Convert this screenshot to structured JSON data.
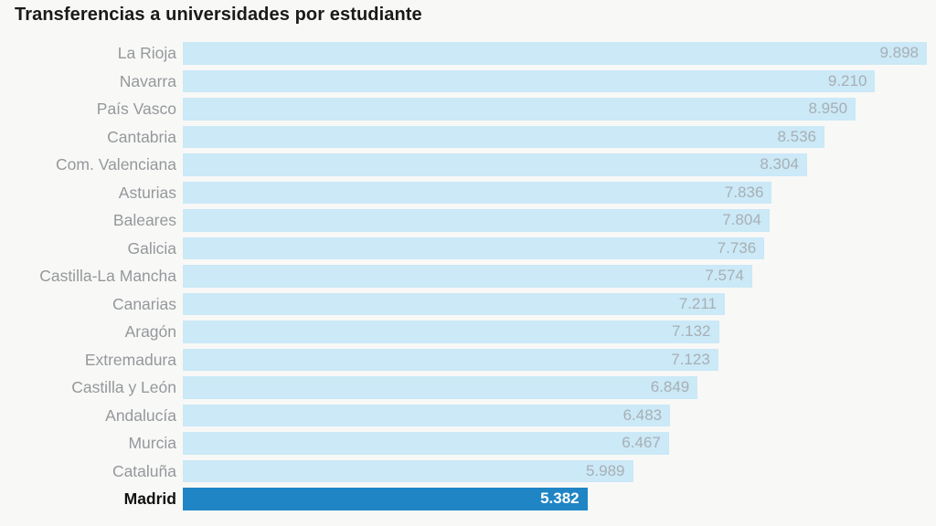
{
  "header": {
    "title": "Transferencias a universidades por estudiante"
  },
  "chart_data": {
    "type": "bar",
    "orientation": "horizontal",
    "title": "Transferencias a universidades por estudiante",
    "xlabel": "",
    "ylabel": "",
    "grid": false,
    "legend": false,
    "value_axis": {
      "min": 0,
      "max": 9898,
      "visible": false
    },
    "categories": [
      "La Rioja",
      "Navarra",
      "País Vasco",
      "Cantabria",
      "Com. Valenciana",
      "Asturias",
      "Baleares",
      "Galicia",
      "Castilla-La Mancha",
      "Canarias",
      "Aragón",
      "Extremadura",
      "Castilla y León",
      "Andalucía",
      "Murcia",
      "Cataluña",
      "Madrid"
    ],
    "values": [
      9898,
      9210,
      8950,
      8536,
      8304,
      7836,
      7804,
      7736,
      7574,
      7211,
      7132,
      7123,
      6849,
      6483,
      6467,
      5989,
      5382
    ],
    "rows": [
      {
        "label": "La Rioja",
        "value": 9898,
        "value_label": "9.898",
        "highlight": false
      },
      {
        "label": "Navarra",
        "value": 9210,
        "value_label": "9.210",
        "highlight": false
      },
      {
        "label": "País Vasco",
        "value": 8950,
        "value_label": "8.950",
        "highlight": false
      },
      {
        "label": "Cantabria",
        "value": 8536,
        "value_label": "8.536",
        "highlight": false
      },
      {
        "label": "Com. Valenciana",
        "value": 8304,
        "value_label": "8.304",
        "highlight": false
      },
      {
        "label": "Asturias",
        "value": 7836,
        "value_label": "7.836",
        "highlight": false
      },
      {
        "label": "Baleares",
        "value": 7804,
        "value_label": "7.804",
        "highlight": false
      },
      {
        "label": "Galicia",
        "value": 7736,
        "value_label": "7.736",
        "highlight": false
      },
      {
        "label": "Castilla-La Mancha",
        "value": 7574,
        "value_label": "7.574",
        "highlight": false
      },
      {
        "label": "Canarias",
        "value": 7211,
        "value_label": "7.211",
        "highlight": false
      },
      {
        "label": "Aragón",
        "value": 7132,
        "value_label": "7.132",
        "highlight": false
      },
      {
        "label": "Extremadura",
        "value": 7123,
        "value_label": "7.123",
        "highlight": false
      },
      {
        "label": "Castilla y León",
        "value": 6849,
        "value_label": "6.849",
        "highlight": false
      },
      {
        "label": "Andalucía",
        "value": 6483,
        "value_label": "6.483",
        "highlight": false
      },
      {
        "label": "Murcia",
        "value": 6467,
        "value_label": "6.467",
        "highlight": false
      },
      {
        "label": "Cataluña",
        "value": 5989,
        "value_label": "5.989",
        "highlight": false
      },
      {
        "label": "Madrid",
        "value": 5382,
        "value_label": "5.382",
        "highlight": true
      }
    ],
    "colors": {
      "bar": "#cbe9f7",
      "highlight_bar": "#1f85c5",
      "category_label": "#94989c",
      "value_label": "#a8afb4",
      "highlight_value_label": "#ffffff",
      "highlight_category_label": "#111111",
      "title": "#1a1a1a",
      "background": "#f8f8f6"
    }
  }
}
